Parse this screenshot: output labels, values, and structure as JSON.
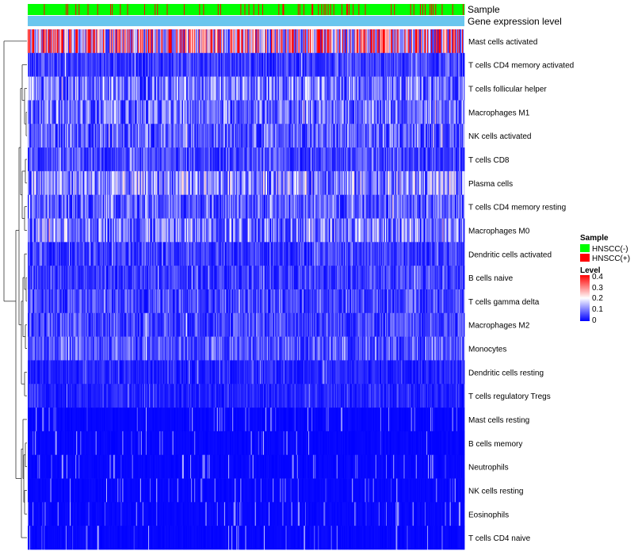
{
  "chart_data": {
    "type": "heatmap",
    "title": "",
    "annotation_tracks": [
      {
        "name": "Sample",
        "label": "Sample"
      },
      {
        "name": "Gene expression level",
        "label": "Gene expression level",
        "color": "#6ac6ee"
      }
    ],
    "rows": [
      "Mast cells activated",
      "T cells CD4 memory activated",
      "T cells follicular helper",
      "Macrophages M1",
      "NK cells activated",
      "T cells CD8",
      "Plasma cells",
      "T cells CD4 memory resting",
      "Macrophages M0",
      "Dendritic cells activated",
      "B cells naive",
      "T cells gamma delta",
      "Macrophages M2",
      "Monocytes",
      "Dendritic cells resting",
      "T cells regulatory  Tregs",
      "Mast cells resting",
      "B cells memory",
      "Neutrophils",
      "NK cells resting",
      "Eosinophils",
      "T cells CD4 naive"
    ],
    "row_mean_levels": [
      0.28,
      0.05,
      0.1,
      0.09,
      0.08,
      0.06,
      0.12,
      0.08,
      0.11,
      0.05,
      0.05,
      0.06,
      0.06,
      0.07,
      0.03,
      0.03,
      0.01,
      0.01,
      0.01,
      0.01,
      0.005,
      0.005
    ],
    "n_samples": 540,
    "legend": {
      "sample_title": "Sample",
      "sample_groups": [
        {
          "label": "HNSCC(-)",
          "color": "#00ff00"
        },
        {
          "label": "HNSCC(+)",
          "color": "#ff0000"
        }
      ],
      "level_title": "Level",
      "level_ticks": [
        "0.4",
        "0.3",
        "0.2",
        "0.1",
        "0"
      ],
      "level_range": [
        0,
        0.4
      ],
      "level_colors": {
        "low": "#0000ff",
        "mid": "#ffffff",
        "high": "#ff0000"
      }
    }
  }
}
